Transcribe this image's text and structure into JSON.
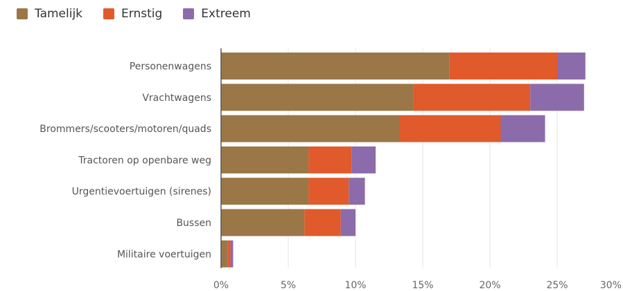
{
  "legend": {
    "items": [
      {
        "label": "Tamelijk",
        "color": "#9b7647"
      },
      {
        "label": "Ernstig",
        "color": "#e05a2b"
      },
      {
        "label": "Extreem",
        "color": "#8c6bab"
      }
    ]
  },
  "chart_data": {
    "type": "bar",
    "orientation": "horizontal",
    "stacked": true,
    "categories": [
      "Personenwagens",
      "Vrachtwagens",
      "Brommers/scooters/motoren/quads",
      "Tractoren op openbare weg",
      "Urgentievoertuigen (sirenes)",
      "Bussen",
      "Militaire voertuigen"
    ],
    "series": [
      {
        "name": "Tamelijk",
        "color": "#9b7647",
        "values": [
          17.0,
          14.3,
          13.3,
          6.5,
          6.5,
          6.2,
          0.5
        ]
      },
      {
        "name": "Ernstig",
        "color": "#e05a2b",
        "values": [
          8.0,
          8.7,
          7.5,
          3.2,
          3.0,
          2.7,
          0.2
        ]
      },
      {
        "name": "Extreem",
        "color": "#8c6bab",
        "values": [
          2.1,
          4.0,
          3.3,
          1.8,
          1.2,
          1.1,
          0.2
        ]
      }
    ],
    "x_ticks": [
      "0%",
      "5%",
      "10%",
      "15%",
      "20%",
      "25%",
      "30%"
    ],
    "xlim": [
      0,
      30
    ],
    "legend_position": "top-left",
    "grid": "vertical"
  }
}
